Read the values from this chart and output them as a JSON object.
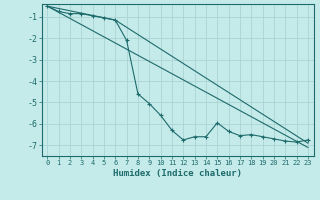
{
  "background_color": "#c5eaea",
  "grid_color": "#a8d0d0",
  "line_color": "#1e6b6b",
  "xlabel": "Humidex (Indice chaleur)",
  "xlim": [
    -0.5,
    23.5
  ],
  "ylim": [
    -7.5,
    -0.4
  ],
  "yticks": [
    -7,
    -6,
    -5,
    -4,
    -3,
    -2,
    -1
  ],
  "xticks": [
    0,
    1,
    2,
    3,
    4,
    5,
    6,
    7,
    8,
    9,
    10,
    11,
    12,
    13,
    14,
    15,
    16,
    17,
    18,
    19,
    20,
    21,
    22,
    23
  ],
  "line1_x": [
    0,
    1,
    2,
    3,
    4,
    5,
    6,
    7,
    8,
    9,
    10,
    11,
    12,
    13,
    14,
    15,
    16,
    17,
    18,
    19,
    20,
    21,
    22,
    23
  ],
  "line1_y": [
    -0.5,
    -0.75,
    -0.85,
    -0.85,
    -0.95,
    -1.05,
    -1.15,
    -2.1,
    -4.6,
    -5.05,
    -5.6,
    -6.3,
    -6.75,
    -6.6,
    -6.6,
    -5.95,
    -6.35,
    -6.55,
    -6.5,
    -6.6,
    -6.7,
    -6.8,
    -6.85,
    -6.75
  ],
  "line2_x": [
    0,
    23
  ],
  "line2_y": [
    -0.5,
    -7.1
  ],
  "line3_x": [
    0,
    6,
    23
  ],
  "line3_y": [
    -0.5,
    -1.15,
    -6.9
  ]
}
